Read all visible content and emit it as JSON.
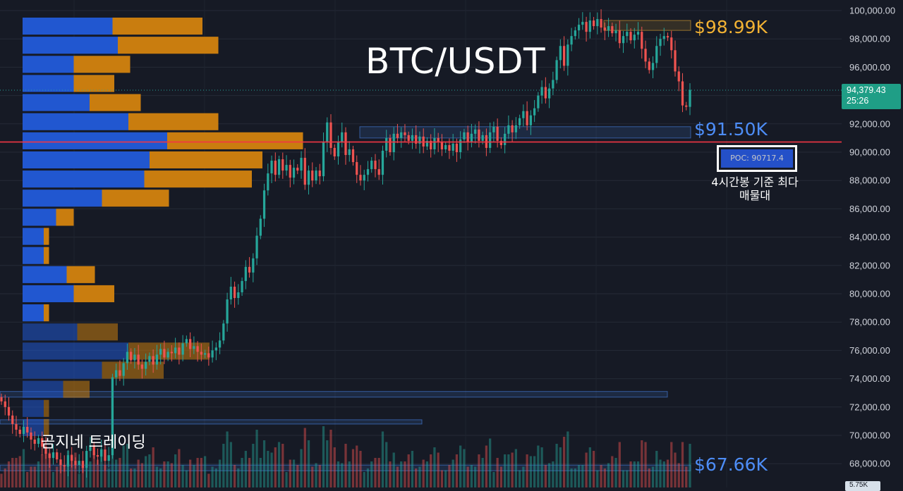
{
  "chart_data": {
    "type": "candlestick",
    "title": "BTC/USDT",
    "symbol": "BTC/USDT",
    "watermark": "곰지네 트레이딩",
    "y_axis": {
      "range": [
        66500,
        100500
      ],
      "ticks": [
        68000,
        70000,
        72000,
        74000,
        76000,
        78000,
        80000,
        82000,
        84000,
        86000,
        88000,
        90000,
        92000,
        94000,
        96000,
        98000,
        100000
      ],
      "tick_labels": [
        "68,000.00",
        "70,000.00",
        "72,000.00",
        "74,000.00",
        "76,000.00",
        "78,000.00",
        "80,000.00",
        "82,000.00",
        "84,000.00",
        "86,000.00",
        "88,000.00",
        "90,000.00",
        "92,000.00",
        "94,000.00",
        "96,000.00",
        "98,000.00",
        "100,000.00"
      ]
    },
    "current_price": {
      "value": 94379.43,
      "label": "94,379.43",
      "countdown": "25:26"
    },
    "volume_tag": "5.75K",
    "poc": {
      "value": 90717.4,
      "label": "POC: 90717.4",
      "note": "4시간봉 기준 최다 매물대",
      "color": "#f23645"
    },
    "levels": [
      {
        "label": "$98.99K",
        "value": 98990,
        "color": "#f2b233"
      },
      {
        "label": "$91.50K",
        "value": 91500,
        "color": "#4d8df7"
      },
      {
        "label": "$67.66K",
        "value": 67660,
        "color": "#4d8df7"
      }
    ],
    "zones": [
      {
        "from": 98600,
        "to": 99300,
        "color": "#f2b233"
      },
      {
        "from": 91000,
        "to": 91800,
        "color": "#4d8df7"
      },
      {
        "from": 72700,
        "to": 73100,
        "color": "#4d8df7"
      },
      {
        "from": 70800,
        "to": 71100,
        "color": "#4d8df7"
      },
      {
        "from": 67500,
        "to": 67900,
        "color": "#4d8df7"
      }
    ],
    "volume_profile": {
      "bucket_size": 1350,
      "rows_from_top": [
        [
          2550,
          2550
        ],
        [
          2700,
          2850
        ],
        [
          1450,
          1600
        ],
        [
          1450,
          1150
        ],
        [
          1900,
          1450
        ],
        [
          3000,
          2550
        ],
        [
          4100,
          3850
        ],
        [
          3600,
          3200
        ],
        [
          3450,
          3050
        ],
        [
          2250,
          1900
        ],
        [
          950,
          500
        ],
        [
          600,
          150
        ],
        [
          600,
          150
        ],
        [
          1250,
          800
        ],
        [
          1450,
          1150
        ],
        [
          600,
          150
        ],
        [
          1550,
          1150
        ],
        [
          3000,
          2300
        ],
        [
          2250,
          1750
        ],
        [
          1150,
          750
        ],
        [
          600,
          150
        ],
        [
          600,
          150
        ]
      ],
      "up_color": "#2157d0",
      "down_color": "#c97d0f"
    },
    "candle_colors": {
      "up": "#26a69a",
      "down": "#ef5350"
    },
    "closes": [
      72400,
      72000,
      71400,
      70800,
      70400,
      70100,
      70600,
      70200,
      69700,
      69400,
      69800,
      69200,
      68700,
      68400,
      68800,
      68300,
      67900,
      67800,
      68600,
      68200,
      67900,
      68200,
      67700,
      68900,
      69300,
      68600,
      68500,
      69000,
      68200,
      68600,
      74100,
      74600,
      74200,
      75100,
      75900,
      75300,
      75700,
      75000,
      74700,
      75200,
      75600,
      75000,
      75700,
      76100,
      75500,
      75900,
      75800,
      76200,
      75700,
      76500,
      76800,
      76100,
      76300,
      75900,
      75700,
      75800,
      75500,
      76000,
      76200,
      76700,
      77900,
      79600,
      80500,
      79700,
      80100,
      80900,
      81900,
      81500,
      82500,
      84100,
      85300,
      87300,
      88500,
      89400,
      88400,
      89500,
      88700,
      89100,
      88200,
      88900,
      88700,
      89600,
      87700,
      88700,
      88000,
      88700,
      88300,
      90700,
      92100,
      90300,
      89700,
      90700,
      91400,
      89800,
      90200,
      89300,
      88400,
      88000,
      88400,
      88800,
      89400,
      88800,
      88400,
      90100,
      91000,
      90000,
      91300,
      91000,
      91400,
      91200,
      90800,
      91200,
      90600,
      91100,
      90400,
      90800,
      90200,
      91000,
      90700,
      90200,
      90500,
      90100,
      90600,
      90000,
      90900,
      91400,
      90700,
      91300,
      91600,
      90800,
      91200,
      90300,
      91400,
      91800,
      90800,
      90500,
      91300,
      91900,
      91400,
      91900,
      92400,
      92900,
      91900,
      92600,
      93100,
      94000,
      94600,
      93800,
      94500,
      95100,
      96500,
      97500,
      96100,
      97600,
      98200,
      98600,
      99000,
      99200,
      98500,
      99300,
      98900,
      99400,
      98800,
      98600,
      98900,
      98400,
      98600,
      97700,
      98200,
      98500,
      97900,
      98300,
      98500,
      97300,
      96400,
      95800,
      96300,
      97500,
      98000,
      98200,
      98100,
      97200,
      95700,
      95000,
      93300,
      93200,
      94400
    ]
  }
}
